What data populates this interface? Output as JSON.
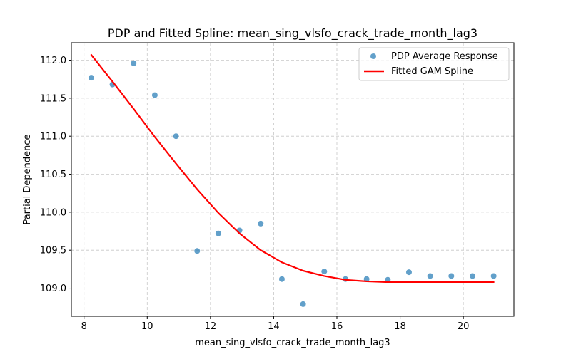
{
  "chart_data": {
    "type": "scatter",
    "title": "PDP and Fitted Spline: mean_sing_vlsfo_crack_trade_month_lag3",
    "xlabel": "mean_sing_vlsfo_crack_trade_month_lag3",
    "ylabel": "Partial Dependence",
    "xlim": [
      7.6,
      21.6
    ],
    "ylim": [
      108.63,
      112.23
    ],
    "xticks": [
      8,
      10,
      12,
      14,
      16,
      18,
      20
    ],
    "yticks": [
      109.0,
      109.5,
      110.0,
      110.5,
      111.0,
      111.5,
      112.0
    ],
    "xtick_labels": [
      "8",
      "10",
      "12",
      "14",
      "16",
      "18",
      "20"
    ],
    "ytick_labels": [
      "109.0",
      "109.5",
      "110.0",
      "110.5",
      "111.0",
      "111.5",
      "112.0"
    ],
    "grid": true,
    "legend_position": "top-right",
    "series": [
      {
        "name": "PDP Average Response",
        "kind": "scatter",
        "color": "#1f77b4",
        "x": [
          8.23,
          8.9,
          9.57,
          10.24,
          10.91,
          11.58,
          12.25,
          12.92,
          13.59,
          14.26,
          14.93,
          15.6,
          16.27,
          16.94,
          17.61,
          18.28,
          18.95,
          19.62,
          20.29,
          20.96
        ],
        "y": [
          111.77,
          111.68,
          111.96,
          111.54,
          111.0,
          109.49,
          109.72,
          109.76,
          109.85,
          109.12,
          108.79,
          109.22,
          109.12,
          109.12,
          109.11,
          109.21,
          109.16,
          109.16,
          109.16,
          109.16
        ]
      },
      {
        "name": "Fitted GAM Spline",
        "kind": "line",
        "color": "#ff0000",
        "x": [
          8.23,
          8.9,
          9.57,
          10.24,
          10.91,
          11.58,
          12.25,
          12.92,
          13.59,
          14.26,
          14.93,
          15.6,
          16.27,
          16.94,
          17.61,
          18.28,
          18.95,
          19.62,
          20.29,
          20.96
        ],
        "y": [
          112.07,
          111.72,
          111.36,
          110.99,
          110.64,
          110.3,
          109.99,
          109.72,
          109.5,
          109.34,
          109.23,
          109.16,
          109.11,
          109.09,
          109.08,
          109.08,
          109.08,
          109.08,
          109.08,
          109.08
        ]
      }
    ]
  }
}
